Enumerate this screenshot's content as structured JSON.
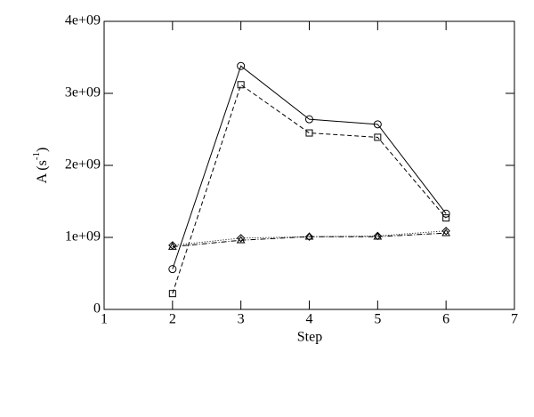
{
  "chart_data": {
    "type": "line",
    "xlabel": "Step",
    "ylabel": [
      "A (s",
      "-1",
      ")"
    ],
    "xlim": [
      1,
      7
    ],
    "xticks": [
      1,
      2,
      3,
      4,
      5,
      6,
      7
    ],
    "ylim": [
      0,
      4000000000
    ],
    "yticks": [
      0,
      {
        "value": 1000000000,
        "label": "1e+09"
      },
      {
        "value": 2000000000,
        "label": "2e+09"
      },
      {
        "value": 3000000000,
        "label": "3e+09"
      },
      {
        "value": 4000000000,
        "label": "4e+09"
      }
    ],
    "x": [
      2,
      3,
      4,
      5,
      6
    ],
    "series": [
      {
        "color": "#000000",
        "marker": "circle",
        "dash": "none",
        "values": [
          560000000,
          3380000000,
          2640000000,
          2570000000,
          1330000000
        ]
      },
      {
        "color": "#000000",
        "marker": "square",
        "dash": "5,3",
        "values": [
          220000000,
          3120000000,
          2450000000,
          2390000000,
          1270000000
        ]
      },
      {
        "color": "#000000",
        "marker": "diamond",
        "dash": "1,2",
        "values": [
          890000000,
          990000000,
          1010000000,
          1020000000,
          1090000000
        ]
      },
      {
        "color": "#000000",
        "marker": "triangle",
        "dash": "6,2,1,2",
        "values": [
          870000000,
          960000000,
          1010000000,
          1010000000,
          1060000000
        ]
      }
    ]
  }
}
